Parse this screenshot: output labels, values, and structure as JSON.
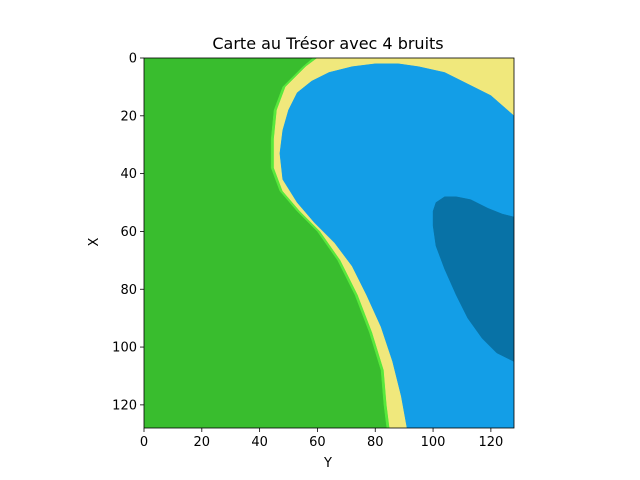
{
  "chart_data": {
    "type": "heatmap",
    "title": "Carte au Trésor avec 4 bruits",
    "xlabel": "Y",
    "ylabel": "X",
    "xlim": [
      0,
      128
    ],
    "ylim": [
      128,
      0
    ],
    "xticks": [
      0,
      20,
      40,
      60,
      80,
      100,
      120
    ],
    "yticks": [
      0,
      20,
      40,
      60,
      80,
      100,
      120
    ],
    "grid": false,
    "colors": {
      "grass": "#39bd2e",
      "grass_edge": "#58e83c",
      "sand": "#f0e87c",
      "shallow_water": "#139ee7",
      "deep_water": "#0872a6"
    },
    "regions": [
      {
        "name": "grass-edge",
        "color_key": "grass_edge",
        "boundary": [
          [
            58.5,
            0
          ],
          [
            55,
            3
          ],
          [
            48,
            10
          ],
          [
            45,
            18
          ],
          [
            44,
            28
          ],
          [
            44,
            38
          ],
          [
            47,
            46
          ],
          [
            53,
            53
          ],
          [
            60,
            60
          ],
          [
            67,
            70
          ],
          [
            73,
            82
          ],
          [
            78,
            95
          ],
          [
            82,
            108
          ],
          [
            83,
            120
          ],
          [
            84,
            128
          ],
          [
            128,
            128
          ],
          [
            128,
            0
          ]
        ]
      },
      {
        "name": "sand-band",
        "color_key": "sand",
        "boundary": [
          [
            60,
            0
          ],
          [
            56,
            3
          ],
          [
            49,
            10
          ],
          [
            46,
            18
          ],
          [
            45,
            28
          ],
          [
            45,
            38
          ],
          [
            48,
            46
          ],
          [
            54,
            53
          ],
          [
            61,
            60
          ],
          [
            68,
            70
          ],
          [
            74,
            82
          ],
          [
            79,
            95
          ],
          [
            83,
            108
          ],
          [
            84,
            120
          ],
          [
            85,
            128
          ],
          [
            128,
            128
          ],
          [
            128,
            0
          ]
        ]
      },
      {
        "name": "shallow-water",
        "color_key": "shallow_water",
        "boundary": [
          [
            80,
            2
          ],
          [
            72,
            3
          ],
          [
            64,
            5
          ],
          [
            58,
            8
          ],
          [
            53,
            12
          ],
          [
            50,
            18
          ],
          [
            48,
            25
          ],
          [
            47,
            33
          ],
          [
            48,
            42
          ],
          [
            53,
            50
          ],
          [
            59,
            57
          ],
          [
            66,
            64
          ],
          [
            72,
            72
          ],
          [
            77,
            82
          ],
          [
            82,
            93
          ],
          [
            86,
            105
          ],
          [
            89,
            117
          ],
          [
            91,
            128
          ],
          [
            128,
            128
          ],
          [
            128,
            20
          ],
          [
            120,
            13
          ],
          [
            112,
            9
          ],
          [
            104,
            5
          ],
          [
            95,
            3
          ],
          [
            88,
            2
          ]
        ]
      },
      {
        "name": "deep-water",
        "color_key": "deep_water",
        "boundary": [
          [
            104,
            48
          ],
          [
            101,
            50
          ],
          [
            100,
            53
          ],
          [
            100,
            58
          ],
          [
            101,
            65
          ],
          [
            104,
            73
          ],
          [
            108,
            82
          ],
          [
            112,
            90
          ],
          [
            117,
            97
          ],
          [
            122,
            102
          ],
          [
            126,
            104
          ],
          [
            128,
            105
          ],
          [
            128,
            55
          ],
          [
            124,
            54
          ],
          [
            119,
            52
          ],
          [
            113,
            49
          ],
          [
            108,
            48
          ]
        ]
      }
    ]
  }
}
